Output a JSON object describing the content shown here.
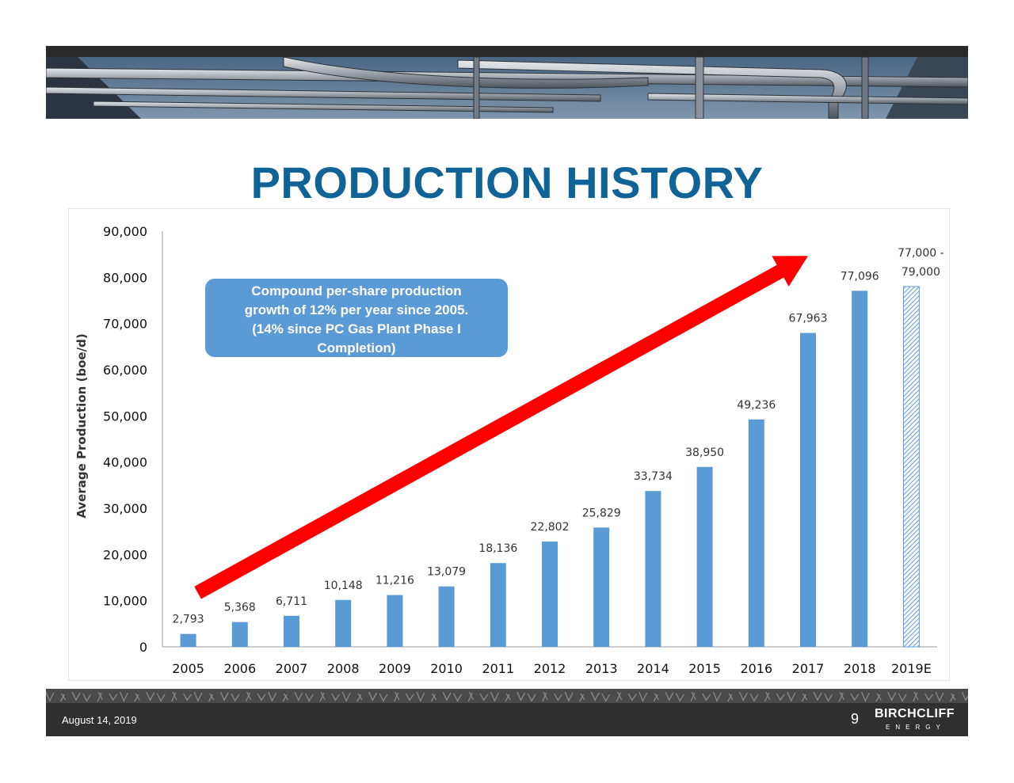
{
  "slide": {
    "title": "PRODUCTION HISTORY",
    "callout_lines": [
      "Compound per-share production",
      "growth of 12% per year since 2005.",
      "(14% since PC Gas Plant Phase I",
      "Completion)"
    ],
    "footer_date": "August 14, 2019",
    "page_number": "9",
    "logo": {
      "name": "BIRCHCLIFF",
      "subtitle": "ENERGY"
    }
  },
  "colors": {
    "title": "#0f6397",
    "bar": "#5b9bd5",
    "callout_bg": "#5b9bd5",
    "arrow": "#ff0000",
    "footer_bg": "#2f2f2f"
  },
  "chart_data": {
    "type": "bar",
    "ylabel": "Average Production (boe/d)",
    "ylim": [
      0,
      90000
    ],
    "yticks": [
      "0",
      "10,000",
      "20,000",
      "30,000",
      "40,000",
      "50,000",
      "60,000",
      "70,000",
      "80,000",
      "90,000"
    ],
    "categories": [
      "2005",
      "2006",
      "2007",
      "2008",
      "2009",
      "2010",
      "2011",
      "2012",
      "2013",
      "2014",
      "2015",
      "2016",
      "2017",
      "2018",
      "2019E"
    ],
    "values": [
      2793,
      5368,
      6711,
      10148,
      11216,
      13079,
      18136,
      22802,
      25829,
      33734,
      38950,
      49236,
      67963,
      77096,
      78000
    ],
    "data_labels": [
      "2,793",
      "5,368",
      "6,711",
      "10,148",
      "11,216",
      "13,079",
      "18,136",
      "22,802",
      "25,829",
      "33,734",
      "38,950",
      "49,236",
      "67,963",
      "77,096",
      "77,000 -\n79,000"
    ],
    "estimate_range": [
      77000,
      79000
    ],
    "estimate_pattern": "hatched",
    "trend_arrow": true,
    "grid": false
  }
}
